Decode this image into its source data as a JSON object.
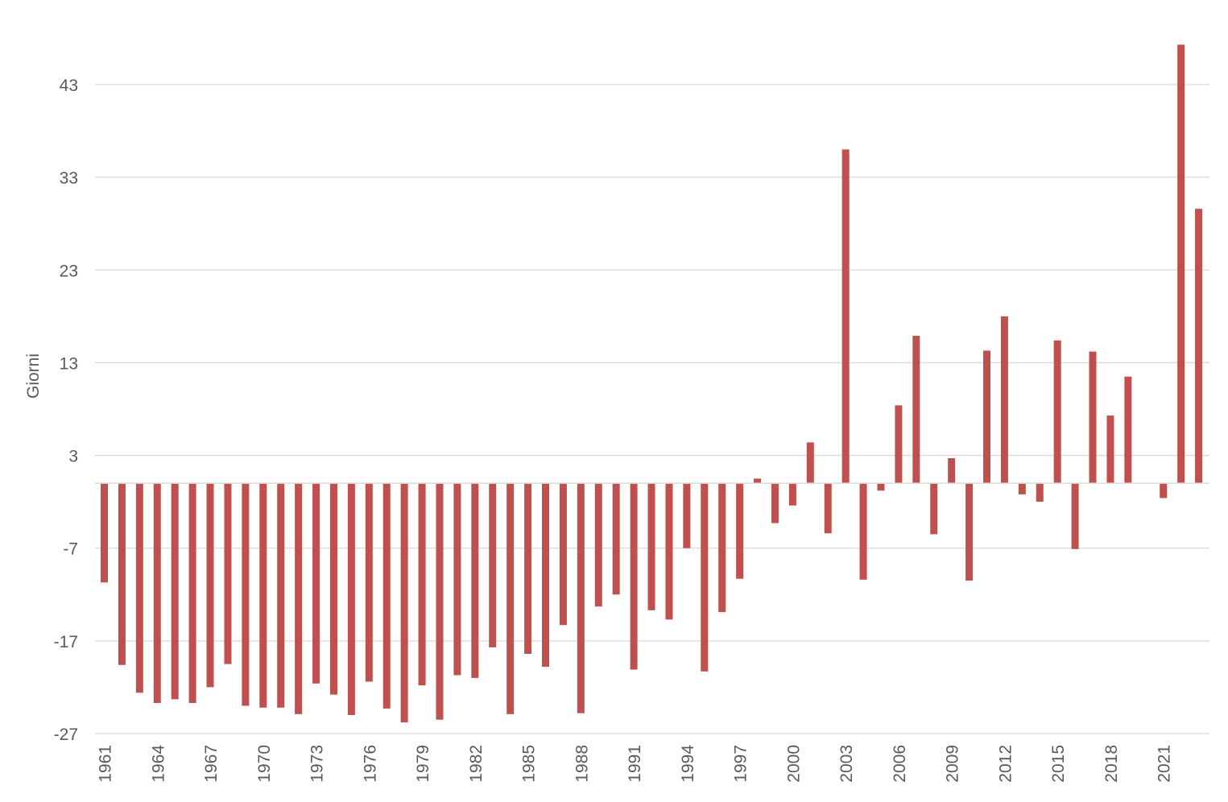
{
  "chart_data": {
    "type": "bar",
    "title": "",
    "xlabel": "",
    "ylabel": "Giorni",
    "ylim": [
      -27,
      48
    ],
    "yticks": [
      43,
      33,
      23,
      13,
      3,
      -7,
      -17,
      -27
    ],
    "grid": true,
    "bar_color": "#C0504D",
    "grid_color": "#D9D9D9",
    "text_color": "#595959",
    "x_tick_labels": [
      "1961",
      "1964",
      "1967",
      "1970",
      "1973",
      "1976",
      "1979",
      "1982",
      "1985",
      "1988",
      "1991",
      "1994",
      "1997",
      "2000",
      "2003",
      "2006",
      "2009",
      "2012",
      "2015",
      "2018",
      "2021"
    ],
    "categories": [
      "1961",
      "1962",
      "1963",
      "1964",
      "1965",
      "1966",
      "1967",
      "1968",
      "1969",
      "1970",
      "1971",
      "1972",
      "1973",
      "1974",
      "1975",
      "1976",
      "1977",
      "1978",
      "1979",
      "1980",
      "1981",
      "1982",
      "1983",
      "1984",
      "1985",
      "1986",
      "1987",
      "1988",
      "1989",
      "1990",
      "1991",
      "1992",
      "1993",
      "1994",
      "1995",
      "1996",
      "1997",
      "1998",
      "1999",
      "2000",
      "2001",
      "2002",
      "2003",
      "2004",
      "2005",
      "2006",
      "2007",
      "2008",
      "2009",
      "2010",
      "2011",
      "2012",
      "2013",
      "2014",
      "2015",
      "2016",
      "2017",
      "2018",
      "2019",
      "2020",
      "2021",
      "2022",
      "2023"
    ],
    "values": [
      -10.7,
      -19.6,
      -22.6,
      -23.7,
      -23.3,
      -23.7,
      -22.0,
      -19.5,
      -24.0,
      -24.2,
      -24.2,
      -24.9,
      -21.6,
      -22.8,
      -25.0,
      -21.4,
      -24.3,
      -25.8,
      -21.8,
      -25.5,
      -20.7,
      -21.0,
      -17.7,
      -24.9,
      -18.4,
      -19.8,
      -15.3,
      -24.8,
      -13.3,
      -12.0,
      -20.1,
      -13.7,
      -14.7,
      -7.0,
      -20.3,
      -13.9,
      -10.3,
      0.5,
      -4.3,
      -2.4,
      4.4,
      -5.4,
      36.0,
      -10.4,
      -0.8,
      8.4,
      15.9,
      -5.5,
      2.7,
      -10.5,
      14.3,
      18.0,
      -1.2,
      -2.0,
      15.4,
      -7.1,
      14.2,
      7.3,
      11.5,
      0.0,
      -1.6,
      47.3,
      29.6
    ]
  }
}
